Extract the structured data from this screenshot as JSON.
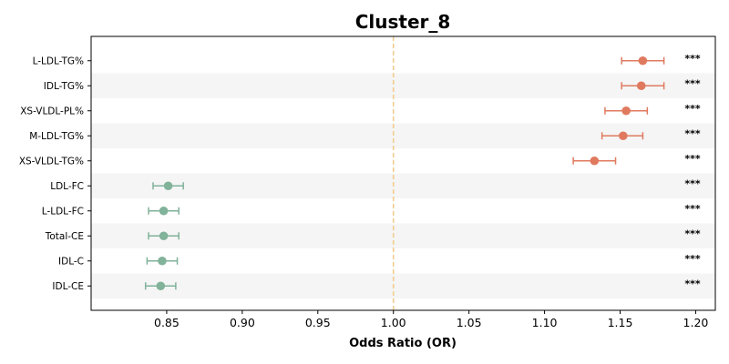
{
  "chart_data": {
    "type": "scatter",
    "title": "Cluster_8",
    "xlabel": "Odds Ratio (OR)",
    "ylabel": "",
    "xlim": [
      0.8,
      1.213
    ],
    "xticks": [
      "0.85",
      "0.90",
      "0.95",
      "1.00",
      "1.05",
      "1.10",
      "1.15",
      "1.20"
    ],
    "reference_line": 1.0,
    "grid": false,
    "colors": {
      "positive": "#e07a5f",
      "negative": "#81b29a",
      "reference": "#f2cc8f",
      "band": "#f5f5f5"
    },
    "rows": [
      {
        "label": "L-LDL-TG%",
        "or": 1.165,
        "lo": 1.151,
        "hi": 1.179,
        "sig": "***"
      },
      {
        "label": "IDL-TG%",
        "or": 1.164,
        "lo": 1.151,
        "hi": 1.179,
        "sig": "***"
      },
      {
        "label": "XS-VLDL-PL%",
        "or": 1.154,
        "lo": 1.14,
        "hi": 1.168,
        "sig": "***"
      },
      {
        "label": "M-LDL-TG%",
        "or": 1.152,
        "lo": 1.138,
        "hi": 1.165,
        "sig": "***"
      },
      {
        "label": "XS-VLDL-TG%",
        "or": 1.133,
        "lo": 1.119,
        "hi": 1.147,
        "sig": "***"
      },
      {
        "label": "LDL-FC",
        "or": 0.851,
        "lo": 0.841,
        "hi": 0.861,
        "sig": "***"
      },
      {
        "label": "L-LDL-FC",
        "or": 0.848,
        "lo": 0.838,
        "hi": 0.858,
        "sig": "***"
      },
      {
        "label": "Total-CE",
        "or": 0.848,
        "lo": 0.838,
        "hi": 0.858,
        "sig": "***"
      },
      {
        "label": "IDL-C",
        "or": 0.847,
        "lo": 0.837,
        "hi": 0.857,
        "sig": "***"
      },
      {
        "label": "IDL-CE",
        "or": 0.846,
        "lo": 0.836,
        "hi": 0.856,
        "sig": "***"
      }
    ]
  }
}
